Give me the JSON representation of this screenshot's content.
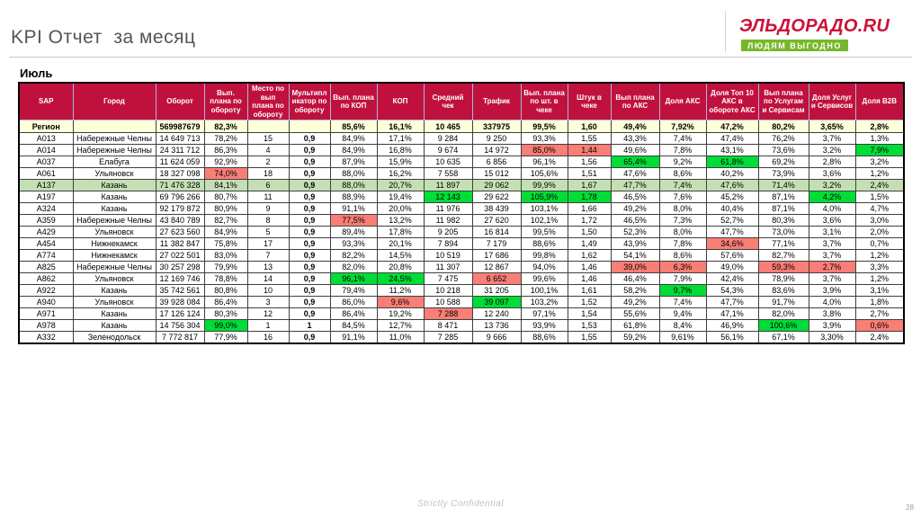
{
  "page": {
    "title": "KPI Отчет  за месяц",
    "month_label": "Июль",
    "footer": "Strictly Confidential",
    "page_number": "28"
  },
  "logo": {
    "brand": "ЭЛЬДОРАДО.RU",
    "tagline": "ЛЮДЯМ ВЫГОДНО",
    "brand_color": "#cc1137",
    "tagline_bg": "#76b82a"
  },
  "colors": {
    "header_bg": "#c0113e",
    "region_row_bg": "#ffffd9",
    "highlight_green": "#00dd37",
    "highlight_red": "#f97e76",
    "row_green": "#c5dfb4"
  },
  "table": {
    "columns": [
      "SAP",
      "Город",
      "Оборот",
      "Вып. плана по обороту",
      "Место по вып плана по обороту",
      "Мультипликатор по обороту",
      "Вып. плана по КОП",
      "КОП",
      "Средний чек",
      "Трафик",
      "Вып. плана по шт. в чеке",
      "Штук в чеке",
      "Вып плана по АКС",
      "Доля АКС",
      "Доля Топ 10 АКС в обороте АКС",
      "Вып плана по Услугам и Сервисам",
      "Доля Услуг и Сервисов",
      "Доля B2B"
    ],
    "region_row": {
      "cells": [
        "Регион",
        "",
        "569987679",
        "82,3%",
        "",
        "",
        "85,6%",
        "16,1%",
        "10 465",
        "337975",
        "99,5%",
        "1,60",
        "49,4%",
        "7,92%",
        "47,2%",
        "80,2%",
        "3,65%",
        "2,8%"
      ]
    },
    "rows": [
      {
        "cells": [
          "A013",
          "Набережные Челны",
          "14 649 713",
          "78,2%",
          "15",
          "0,9",
          "84,9%",
          "17,1%",
          "9 284",
          "9 250",
          "93,3%",
          "1,55",
          "43,3%",
          "7,4%",
          "47,4%",
          "76,2%",
          "3,7%",
          "1,3%"
        ],
        "hl": {},
        "bg": ""
      },
      {
        "cells": [
          "A014",
          "Набережные Челны",
          "24 311 712",
          "86,3%",
          "4",
          "0,9",
          "84,9%",
          "16,8%",
          "9 674",
          "14 972",
          "85,0%",
          "1,44",
          "49,6%",
          "7,8%",
          "43,1%",
          "73,6%",
          "3,2%",
          "7,9%"
        ],
        "hl": {
          "10": "r",
          "11": "r",
          "17": "g"
        },
        "bg": ""
      },
      {
        "cells": [
          "A037",
          "Елабуга",
          "11 624 059",
          "92,9%",
          "2",
          "0,9",
          "87,9%",
          "15,9%",
          "10 635",
          "6 856",
          "96,1%",
          "1,56",
          "65,4%",
          "9,2%",
          "61,8%",
          "69,2%",
          "2,8%",
          "3,2%"
        ],
        "hl": {
          "12": "g",
          "14": "g"
        },
        "bg": ""
      },
      {
        "cells": [
          "A061",
          "Ульяновск",
          "18 327 098",
          "74,0%",
          "18",
          "0,9",
          "88,0%",
          "16,2%",
          "7 558",
          "15 012",
          "105,6%",
          "1,51",
          "47,6%",
          "8,6%",
          "40,2%",
          "73,9%",
          "3,6%",
          "1,2%"
        ],
        "hl": {
          "3": "r"
        },
        "bg": ""
      },
      {
        "cells": [
          "A137",
          "Казань",
          "71 476 328",
          "84,1%",
          "6",
          "0,9",
          "88,0%",
          "20,7%",
          "11 897",
          "29 062",
          "99,9%",
          "1,67",
          "47,7%",
          "7,4%",
          "47,6%",
          "71,4%",
          "3,2%",
          "2,4%"
        ],
        "hl": {},
        "bg": "g"
      },
      {
        "cells": [
          "A197",
          "Казань",
          "69 796 266",
          "80,7%",
          "11",
          "0,9",
          "88,9%",
          "19,4%",
          "12 143",
          "29 622",
          "105,9%",
          "1,78",
          "46,5%",
          "7,6%",
          "45,2%",
          "87,1%",
          "4,2%",
          "1,5%"
        ],
        "hl": {
          "8": "g",
          "10": "g",
          "11": "g",
          "16": "g"
        },
        "bg": ""
      },
      {
        "cells": [
          "A324",
          "Казань",
          "92 179 872",
          "80,9%",
          "9",
          "0,9",
          "91,1%",
          "20,0%",
          "11 976",
          "38 439",
          "103,1%",
          "1,66",
          "49,2%",
          "8,0%",
          "40,4%",
          "87,1%",
          "4,0%",
          "4,7%"
        ],
        "hl": {},
        "bg": ""
      },
      {
        "cells": [
          "A359",
          "Набережные Челны",
          "43 840 789",
          "82,7%",
          "8",
          "0,9",
          "77,5%",
          "13,2%",
          "11 982",
          "27 620",
          "102,1%",
          "1,72",
          "46,5%",
          "7,3%",
          "52,7%",
          "80,3%",
          "3,6%",
          "3,0%"
        ],
        "hl": {
          "6": "r"
        },
        "bg": ""
      },
      {
        "cells": [
          "A429",
          "Ульяновск",
          "27 623 560",
          "84,9%",
          "5",
          "0,9",
          "89,4%",
          "17,8%",
          "9 205",
          "16 814",
          "99,5%",
          "1,50",
          "52,3%",
          "8,0%",
          "47,7%",
          "73,0%",
          "3,1%",
          "2,0%"
        ],
        "hl": {},
        "bg": ""
      },
      {
        "cells": [
          "A454",
          "Нижнекамск",
          "11 382 847",
          "75,8%",
          "17",
          "0,9",
          "93,3%",
          "20,1%",
          "7 894",
          "7 179",
          "88,6%",
          "1,49",
          "43,9%",
          "7,8%",
          "34,6%",
          "77,1%",
          "3,7%",
          "0,7%"
        ],
        "hl": {
          "14": "r"
        },
        "bg": ""
      },
      {
        "cells": [
          "A774",
          "Нижнекамск",
          "27 022 501",
          "83,0%",
          "7",
          "0,9",
          "82,2%",
          "14,5%",
          "10 519",
          "17 686",
          "99,8%",
          "1,62",
          "54,1%",
          "8,6%",
          "57,6%",
          "82,7%",
          "3,7%",
          "1,2%"
        ],
        "hl": {},
        "bg": ""
      },
      {
        "cells": [
          "A825",
          "Набережные Челны",
          "30 257 298",
          "79,9%",
          "13",
          "0,9",
          "82,0%",
          "20,8%",
          "11 307",
          "12 867",
          "94,0%",
          "1,46",
          "39,0%",
          "6,3%",
          "49,0%",
          "59,3%",
          "2,7%",
          "3,3%"
        ],
        "hl": {
          "12": "r",
          "13": "r",
          "15": "r",
          "16": "r"
        },
        "bg": ""
      },
      {
        "cells": [
          "A862",
          "Ульяновск",
          "12 169 746",
          "78,8%",
          "14",
          "0,9",
          "96,1%",
          "24,5%",
          "7 475",
          "6 652",
          "99,6%",
          "1,46",
          "46,4%",
          "7,9%",
          "42,4%",
          "78,9%",
          "3,7%",
          "1,2%"
        ],
        "hl": {
          "6": "g",
          "7": "g",
          "9": "r"
        },
        "bg": ""
      },
      {
        "cells": [
          "A922",
          "Казань",
          "35 742 561",
          "80,8%",
          "10",
          "0,9",
          "79,4%",
          "11,2%",
          "10 218",
          "31 205",
          "100,1%",
          "1,61",
          "58,2%",
          "9,7%",
          "54,3%",
          "83,6%",
          "3,9%",
          "3,1%"
        ],
        "hl": {
          "13": "g"
        },
        "bg": ""
      },
      {
        "cells": [
          "A940",
          "Ульяновск",
          "39 928 084",
          "86,4%",
          "3",
          "0,9",
          "86,0%",
          "9,6%",
          "10 588",
          "39 097",
          "103,2%",
          "1,52",
          "49,2%",
          "7,4%",
          "47,7%",
          "91,7%",
          "4,0%",
          "1,8%"
        ],
        "hl": {
          "7": "r",
          "9": "g"
        },
        "bg": ""
      },
      {
        "cells": [
          "A971",
          "Казань",
          "17 126 124",
          "80,3%",
          "12",
          "0,9",
          "86,4%",
          "19,2%",
          "7 288",
          "12 240",
          "97,1%",
          "1,54",
          "55,6%",
          "9,4%",
          "47,1%",
          "82,0%",
          "3,8%",
          "2,7%"
        ],
        "hl": {
          "8": "r"
        },
        "bg": ""
      },
      {
        "cells": [
          "A978",
          "Казань",
          "14 756 304",
          "99,0%",
          "1",
          "1",
          "84,5%",
          "12,7%",
          "8 471",
          "13 736",
          "93,9%",
          "1,53",
          "61,8%",
          "8,4%",
          "46,9%",
          "100,6%",
          "3,9%",
          "0,6%"
        ],
        "hl": {
          "3": "g",
          "15": "g",
          "17": "r"
        },
        "bg": ""
      },
      {
        "cells": [
          "A332",
          "Зеленодольск",
          "7 772 817",
          "77,9%",
          "16",
          "0,9",
          "91,1%",
          "11,0%",
          "7 285",
          "9 666",
          "88,6%",
          "1,55",
          "59,2%",
          "9,61%",
          "56,1%",
          "67,1%",
          "3,30%",
          "2,4%"
        ],
        "hl": {},
        "bg": ""
      }
    ]
  }
}
